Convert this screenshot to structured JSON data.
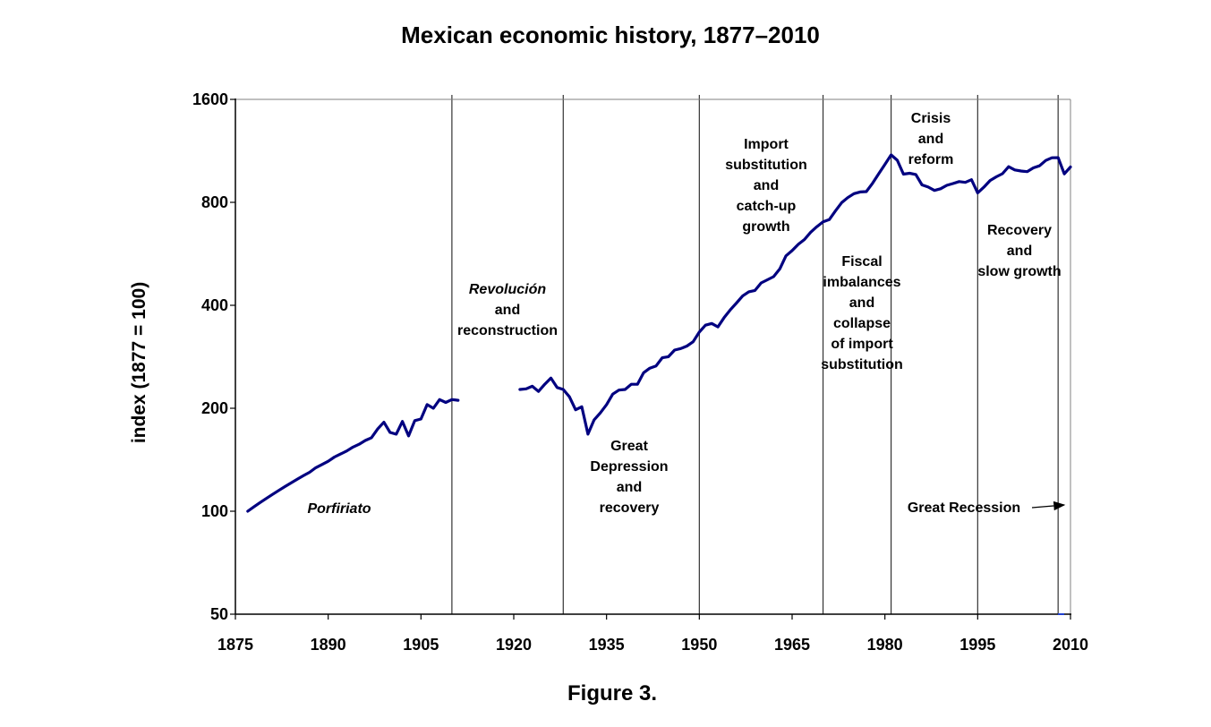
{
  "title": "Mexican economic history, 1877–2010",
  "caption": "Figure 3.",
  "colors": {
    "line": "#000080",
    "axis": "#000000",
    "divider": "#333333"
  },
  "chart_data": {
    "type": "line",
    "title": "Mexican economic history, 1877–2010",
    "xlabel": "",
    "ylabel": "index (1877 = 100)",
    "xlim": [
      1875,
      2010
    ],
    "ylim": [
      50,
      1600
    ],
    "y_scale": "log2",
    "grid": false,
    "x_ticks": [
      "1875",
      "1890",
      "1905",
      "1920",
      "1935",
      "1950",
      "1965",
      "1980",
      "1995",
      "2010"
    ],
    "y_ticks": [
      "50",
      "100",
      "200",
      "400",
      "800",
      "1600"
    ],
    "period_dividers": [
      1910,
      1928,
      1950,
      1970,
      1981,
      1995,
      2008
    ],
    "series": [
      {
        "segments": [
          [
            [
              1877,
              100
            ],
            [
              1878,
              103
            ],
            [
              1879,
              106
            ],
            [
              1880,
              109
            ],
            [
              1881,
              112
            ],
            [
              1882,
              115
            ],
            [
              1883,
              118
            ],
            [
              1884,
              121
            ],
            [
              1885,
              124
            ],
            [
              1886,
              127
            ],
            [
              1887,
              130
            ],
            [
              1888,
              134
            ],
            [
              1889,
              137
            ],
            [
              1890,
              140
            ],
            [
              1891,
              144
            ],
            [
              1892,
              147
            ],
            [
              1893,
              150
            ],
            [
              1894,
              154
            ],
            [
              1895,
              157
            ],
            [
              1896,
              161
            ],
            [
              1897,
              164
            ],
            [
              1898,
              174
            ],
            [
              1899,
              182
            ],
            [
              1900,
              170
            ],
            [
              1901,
              168
            ],
            [
              1902,
              183
            ],
            [
              1903,
              166
            ],
            [
              1904,
              184
            ],
            [
              1905,
              186
            ],
            [
              1906,
              205
            ],
            [
              1907,
              200
            ],
            [
              1908,
              212
            ],
            [
              1909,
              208
            ],
            [
              1910,
              212
            ],
            [
              1911,
              211
            ]
          ],
          [
            [
              1921,
              227
            ],
            [
              1922,
              228
            ],
            [
              1923,
              232
            ],
            [
              1924,
              224
            ],
            [
              1925,
              235
            ],
            [
              1926,
              245
            ],
            [
              1927,
              230
            ],
            [
              1928,
              227
            ],
            [
              1929,
              216
            ],
            [
              1930,
              198
            ],
            [
              1931,
              202
            ],
            [
              1932,
              168
            ],
            [
              1933,
              185
            ],
            [
              1934,
              194
            ],
            [
              1935,
              205
            ],
            [
              1936,
              220
            ],
            [
              1937,
              226
            ],
            [
              1938,
              227
            ],
            [
              1939,
              235
            ],
            [
              1940,
              235
            ],
            [
              1941,
              254
            ],
            [
              1942,
              262
            ],
            [
              1943,
              266
            ],
            [
              1944,
              281
            ],
            [
              1945,
              283
            ],
            [
              1946,
              296
            ],
            [
              1947,
              299
            ],
            [
              1948,
              304
            ],
            [
              1949,
              313
            ],
            [
              1950,
              334
            ],
            [
              1951,
              350
            ],
            [
              1952,
              354
            ],
            [
              1953,
              346
            ],
            [
              1954,
              368
            ],
            [
              1955,
              388
            ],
            [
              1956,
              406
            ],
            [
              1957,
              426
            ],
            [
              1958,
              438
            ],
            [
              1959,
              442
            ],
            [
              1960,
              465
            ],
            [
              1961,
              475
            ],
            [
              1962,
              485
            ],
            [
              1963,
              511
            ],
            [
              1964,
              558
            ],
            [
              1965,
              578
            ],
            [
              1966,
              603
            ],
            [
              1967,
              623
            ],
            [
              1968,
              654
            ],
            [
              1969,
              679
            ],
            [
              1970,
              702
            ],
            [
              1971,
              712
            ],
            [
              1972,
              755
            ],
            [
              1973,
              798
            ],
            [
              1974,
              826
            ],
            [
              1975,
              848
            ],
            [
              1976,
              858
            ],
            [
              1977,
              860
            ],
            [
              1978,
              909
            ],
            [
              1979,
              970
            ],
            [
              1980,
              1033
            ],
            [
              1981,
              1101
            ],
            [
              1982,
              1062
            ],
            [
              1983,
              967
            ],
            [
              1984,
              973
            ],
            [
              1985,
              965
            ],
            [
              1986,
              900
            ],
            [
              1987,
              887
            ],
            [
              1988,
              867
            ],
            [
              1989,
              877
            ],
            [
              1990,
              897
            ],
            [
              1991,
              908
            ],
            [
              1992,
              920
            ],
            [
              1993,
              915
            ],
            [
              1994,
              932
            ],
            [
              1995,
              853
            ],
            [
              1996,
              886
            ],
            [
              1997,
              927
            ],
            [
              1998,
              950
            ],
            [
              1999,
              970
            ],
            [
              2000,
              1017
            ],
            [
              2001,
              995
            ],
            [
              2002,
              988
            ],
            [
              2003,
              984
            ],
            [
              2004,
              1009
            ],
            [
              2005,
              1023
            ],
            [
              2006,
              1061
            ],
            [
              2007,
              1080
            ],
            [
              2008,
              1081
            ],
            [
              2009,
              969
            ],
            [
              2010,
              1015
            ]
          ]
        ]
      }
    ],
    "annotations": {
      "porfiriato": [
        "Porfiriato"
      ],
      "revolucion": [
        "Revolución",
        "and",
        "reconstruction"
      ],
      "depression": [
        "Great",
        "Depression",
        "and",
        "recovery"
      ],
      "isi": [
        "Import",
        "substitution",
        "and",
        "catch-up",
        "growth"
      ],
      "fiscal": [
        "Fiscal",
        "imbalances",
        "and",
        "collapse",
        "of import",
        "substitution"
      ],
      "crisis": [
        "Crisis",
        "and",
        "reform"
      ],
      "recovery": [
        "Recovery",
        "and",
        "slow growth"
      ],
      "great_recession": [
        "Great Recession"
      ]
    }
  }
}
